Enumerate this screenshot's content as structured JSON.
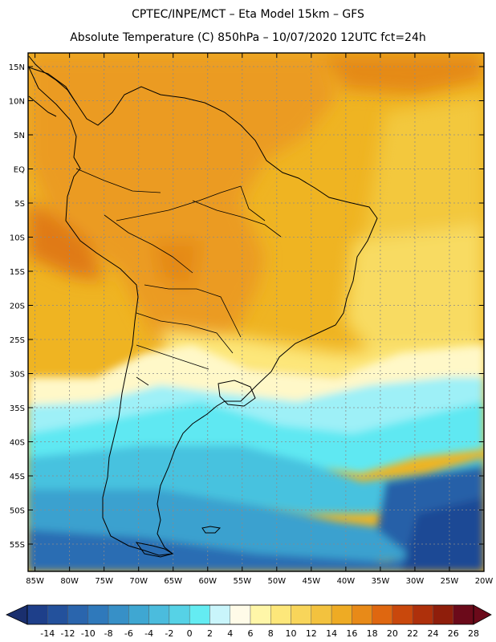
{
  "title": {
    "line1": "CPTEC/INPE/MCT –  Eta Model 15km – GFS",
    "line2": "Absolute Temperature (C) 850hPa – 10/07/2020 12UTC fct=24h"
  },
  "map": {
    "lon_range": [
      -86,
      -20
    ],
    "lat_range": [
      -59,
      17
    ],
    "lat_ticks": [
      {
        "value": 15,
        "label": "15N"
      },
      {
        "value": 10,
        "label": "10N"
      },
      {
        "value": 5,
        "label": "5N"
      },
      {
        "value": 0,
        "label": "EQ"
      },
      {
        "value": -5,
        "label": "5S"
      },
      {
        "value": -10,
        "label": "10S"
      },
      {
        "value": -15,
        "label": "15S"
      },
      {
        "value": -20,
        "label": "20S"
      },
      {
        "value": -25,
        "label": "25S"
      },
      {
        "value": -30,
        "label": "30S"
      },
      {
        "value": -35,
        "label": "35S"
      },
      {
        "value": -40,
        "label": "40S"
      },
      {
        "value": -45,
        "label": "45S"
      },
      {
        "value": -50,
        "label": "50S"
      },
      {
        "value": -55,
        "label": "55S"
      }
    ],
    "lon_ticks": [
      {
        "value": -85,
        "label": "85W"
      },
      {
        "value": -80,
        "label": "80W"
      },
      {
        "value": -75,
        "label": "75W"
      },
      {
        "value": -70,
        "label": "70W"
      },
      {
        "value": -65,
        "label": "65W"
      },
      {
        "value": -60,
        "label": "60W"
      },
      {
        "value": -55,
        "label": "55W"
      },
      {
        "value": -50,
        "label": "50W"
      },
      {
        "value": -45,
        "label": "45W"
      },
      {
        "value": -40,
        "label": "40W"
      },
      {
        "value": -35,
        "label": "35W"
      },
      {
        "value": -30,
        "label": "30W"
      },
      {
        "value": -25,
        "label": "25W"
      },
      {
        "value": -20,
        "label": "20W"
      }
    ],
    "gridline_color": "#8a8a8a",
    "coastline_color": "#000000"
  },
  "legend": {
    "labels": [
      "-14",
      "-12",
      "-10",
      "-8",
      "-6",
      "-4",
      "-2",
      "0",
      "2",
      "4",
      "6",
      "8",
      "10",
      "12",
      "14",
      "16",
      "18",
      "20",
      "22",
      "24",
      "26",
      "28"
    ],
    "low_arrow_color": "#1a2f6e",
    "high_arrow_color": "#6b0a1a",
    "colors": [
      "#1e3f8a",
      "#23519c",
      "#2a65ad",
      "#2f79bb",
      "#3790c7",
      "#3fa7d2",
      "#4bbcdd",
      "#56d2e6",
      "#64ecf2",
      "#c9f5fb",
      "#fffbe8",
      "#fff6a8",
      "#fde77a",
      "#f8d55a",
      "#f3c23e",
      "#eeab24",
      "#e88a18",
      "#df6710",
      "#c9480c",
      "#ae300b",
      "#8f1e0b",
      "#6b0a1a"
    ]
  }
}
